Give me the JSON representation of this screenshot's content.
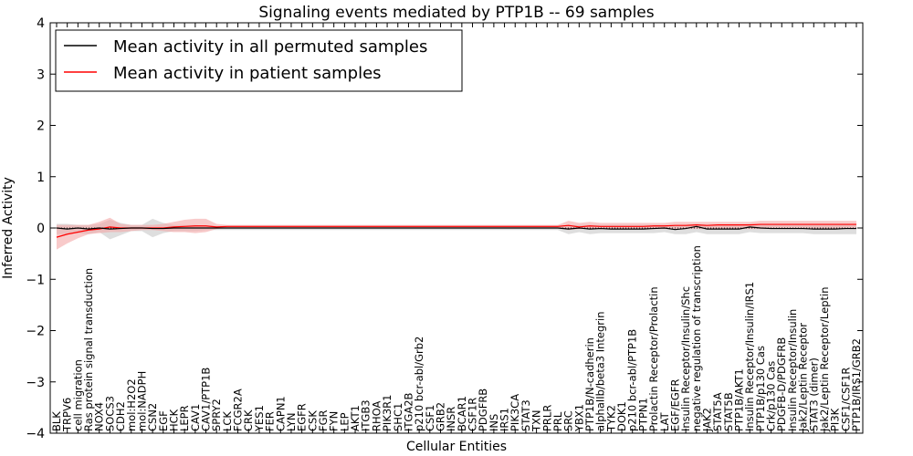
{
  "chart_data": {
    "type": "line",
    "title": "Signaling events mediated by PTP1B -- 69 samples",
    "xlabel": "Cellular Entities",
    "ylabel": "Inferred Activity",
    "ylim": [
      -4,
      4
    ],
    "yticks": [
      -4,
      -3,
      -2,
      -1,
      0,
      1,
      2,
      3,
      4
    ],
    "ytick_labels": [
      "−4",
      "−3",
      "−2",
      "−1",
      "0",
      "1",
      "2",
      "3",
      "4"
    ],
    "legend_position": "top-left",
    "categories": [
      "BLK",
      "TRPV6",
      "cell migration",
      "Ras protein signal transduction",
      "NOX4",
      "SOCS3",
      "CDH2",
      "mol:H2O2",
      "mol:NADPH",
      "CSN2",
      "EGF",
      "HCK",
      "LEPR",
      "CAV1",
      "CAV1/PTP1B",
      "SPRY2",
      "LCK",
      "FCGR2A",
      "CRK",
      "YES1",
      "FER",
      "CAPN1",
      "LYN",
      "EGFR",
      "CSK",
      "FGR",
      "FYN",
      "LEP",
      "AKT1",
      "ITGB3",
      "RHOA",
      "PIK3R1",
      "SHC1",
      "ITGA2B",
      "p210 bcr-abl/Grb2",
      "CSF1",
      "GRB2",
      "INSR",
      "BCAR1",
      "CSF1R",
      "PDGFRB",
      "INS",
      "IRS1",
      "PIK3CA",
      "STAT3",
      "TXN",
      "PRLR",
      "PRL",
      "SRC",
      "YBX1",
      "PTP1B/N-cadherin",
      "alphaIIb/beta3 Integrin",
      "TYK2",
      "DOK1",
      "p210 bcr-abl/PTP1B",
      "PTPN1",
      "Prolactin Receptor/Prolactin",
      "LAT",
      "EGF/EGFR",
      "Insulin Receptor/Insulin/Shc",
      "negative regulation of transcription",
      "JAK2",
      "STAT5A",
      "STAT5B",
      "PTP1B/AKT1",
      "Insulin Receptor/Insulin/IRS1",
      "PTP1B/p130 Cas",
      "Crk/p130 Cas",
      "PDGFB-D/PDGFRB",
      "Insulin Receptor/Insulin",
      "Jak2/Leptin Receptor",
      "STAT3 (dimer)",
      "Jak2/Leptin Receptor/Leptin",
      "PI3K",
      "CSF1/CSF1R",
      "PTP1B/IRS1/GRB2"
    ],
    "series": [
      {
        "name": "Mean activity in all permuted samples",
        "color": "#000000",
        "band_color": "#cccccc",
        "values": [
          0.0,
          -0.02,
          0.0,
          -0.02,
          0.0,
          -0.02,
          -0.01,
          0.0,
          0.0,
          -0.01,
          -0.01,
          0.0,
          0.0,
          0.0,
          0.0,
          0.0,
          0.0,
          0.0,
          0.0,
          0.0,
          0.0,
          0.0,
          0.0,
          0.0,
          0.0,
          0.0,
          0.0,
          0.0,
          0.0,
          0.0,
          0.0,
          0.0,
          0.0,
          0.0,
          0.0,
          0.0,
          0.0,
          0.0,
          0.0,
          0.0,
          0.0,
          0.0,
          0.0,
          0.0,
          0.0,
          0.0,
          0.0,
          0.0,
          -0.02,
          0.0,
          -0.02,
          -0.01,
          -0.02,
          -0.02,
          -0.02,
          -0.02,
          -0.01,
          0.0,
          -0.03,
          -0.01,
          0.03,
          -0.02,
          -0.02,
          -0.02,
          -0.02,
          0.02,
          0.0,
          -0.01,
          -0.01,
          -0.01,
          -0.01,
          -0.02,
          -0.02,
          -0.02,
          -0.01,
          -0.01
        ],
        "lower": [
          -0.12,
          -0.12,
          -0.1,
          -0.12,
          -0.08,
          -0.22,
          -0.14,
          -0.06,
          -0.06,
          -0.18,
          -0.1,
          -0.06,
          -0.06,
          -0.06,
          -0.04,
          -0.04,
          -0.04,
          -0.04,
          -0.04,
          -0.04,
          -0.04,
          -0.04,
          -0.04,
          -0.04,
          -0.04,
          -0.04,
          -0.04,
          -0.04,
          -0.04,
          -0.04,
          -0.04,
          -0.04,
          -0.04,
          -0.04,
          -0.04,
          -0.04,
          -0.04,
          -0.04,
          -0.04,
          -0.04,
          -0.04,
          -0.04,
          -0.04,
          -0.04,
          -0.04,
          -0.04,
          -0.04,
          -0.04,
          -0.12,
          -0.08,
          -0.12,
          -0.1,
          -0.1,
          -0.1,
          -0.1,
          -0.1,
          -0.1,
          -0.08,
          -0.12,
          -0.12,
          -0.08,
          -0.12,
          -0.12,
          -0.12,
          -0.12,
          -0.08,
          -0.1,
          -0.1,
          -0.1,
          -0.1,
          -0.1,
          -0.12,
          -0.12,
          -0.12,
          -0.12,
          -0.12
        ],
        "upper": [
          0.08,
          0.08,
          0.06,
          0.06,
          0.08,
          0.16,
          0.1,
          0.06,
          0.06,
          0.18,
          0.1,
          0.06,
          0.06,
          0.06,
          0.04,
          0.04,
          0.04,
          0.04,
          0.04,
          0.04,
          0.04,
          0.04,
          0.04,
          0.04,
          0.04,
          0.04,
          0.04,
          0.04,
          0.04,
          0.04,
          0.04,
          0.04,
          0.04,
          0.04,
          0.04,
          0.04,
          0.04,
          0.04,
          0.04,
          0.04,
          0.04,
          0.04,
          0.04,
          0.04,
          0.04,
          0.04,
          0.04,
          0.04,
          0.06,
          0.06,
          0.06,
          0.06,
          0.06,
          0.06,
          0.06,
          0.06,
          0.06,
          0.06,
          0.04,
          0.06,
          0.08,
          0.06,
          0.06,
          0.06,
          0.06,
          0.08,
          0.06,
          0.06,
          0.06,
          0.06,
          0.06,
          0.06,
          0.06,
          0.06,
          0.06,
          0.06
        ]
      },
      {
        "name": "Mean activity in patient samples",
        "color": "#ff0000",
        "band_color": "#f4a6a6",
        "values": [
          -0.18,
          -0.12,
          -0.08,
          -0.04,
          -0.02,
          0.02,
          0.0,
          0.0,
          0.0,
          0.0,
          0.0,
          0.02,
          0.03,
          0.04,
          0.04,
          0.02,
          0.03,
          0.03,
          0.03,
          0.03,
          0.03,
          0.03,
          0.03,
          0.03,
          0.03,
          0.03,
          0.03,
          0.03,
          0.03,
          0.03,
          0.03,
          0.03,
          0.03,
          0.03,
          0.03,
          0.03,
          0.03,
          0.03,
          0.03,
          0.03,
          0.03,
          0.03,
          0.03,
          0.03,
          0.03,
          0.03,
          0.03,
          0.03,
          0.05,
          0.02,
          0.04,
          0.03,
          0.03,
          0.03,
          0.03,
          0.03,
          0.04,
          0.04,
          0.05,
          0.05,
          0.06,
          0.05,
          0.06,
          0.06,
          0.06,
          0.06,
          0.07,
          0.07,
          0.07,
          0.07,
          0.07,
          0.07,
          0.07,
          0.07,
          0.07,
          0.07
        ],
        "lower": [
          -0.42,
          -0.3,
          -0.2,
          -0.12,
          -0.1,
          -0.08,
          -0.08,
          -0.06,
          -0.04,
          -0.04,
          -0.06,
          -0.08,
          -0.08,
          -0.1,
          -0.08,
          -0.02,
          0.0,
          0.0,
          0.0,
          0.0,
          0.0,
          0.0,
          0.0,
          0.0,
          0.0,
          0.0,
          0.0,
          0.0,
          0.0,
          0.0,
          0.0,
          0.0,
          0.0,
          0.0,
          0.0,
          0.0,
          0.0,
          0.0,
          0.0,
          0.0,
          0.0,
          0.0,
          0.0,
          0.0,
          0.0,
          0.0,
          0.0,
          0.0,
          -0.04,
          -0.02,
          -0.02,
          -0.02,
          -0.02,
          -0.02,
          -0.02,
          -0.02,
          -0.02,
          -0.02,
          -0.02,
          -0.02,
          -0.02,
          -0.02,
          -0.02,
          -0.02,
          -0.02,
          -0.02,
          -0.02,
          -0.02,
          -0.02,
          -0.02,
          -0.02,
          -0.02,
          -0.02,
          -0.02,
          -0.02,
          -0.02
        ],
        "upper": [
          0.06,
          0.06,
          0.06,
          0.06,
          0.12,
          0.2,
          0.08,
          0.06,
          0.06,
          0.06,
          0.08,
          0.12,
          0.16,
          0.18,
          0.18,
          0.08,
          0.06,
          0.06,
          0.06,
          0.06,
          0.06,
          0.06,
          0.06,
          0.06,
          0.06,
          0.06,
          0.06,
          0.06,
          0.06,
          0.06,
          0.06,
          0.06,
          0.06,
          0.06,
          0.06,
          0.06,
          0.06,
          0.06,
          0.06,
          0.06,
          0.06,
          0.06,
          0.06,
          0.06,
          0.06,
          0.06,
          0.06,
          0.06,
          0.14,
          0.1,
          0.12,
          0.1,
          0.1,
          0.1,
          0.1,
          0.1,
          0.1,
          0.1,
          0.12,
          0.12,
          0.12,
          0.12,
          0.12,
          0.12,
          0.12,
          0.12,
          0.14,
          0.14,
          0.14,
          0.14,
          0.14,
          0.14,
          0.14,
          0.14,
          0.14,
          0.14
        ]
      }
    ]
  }
}
